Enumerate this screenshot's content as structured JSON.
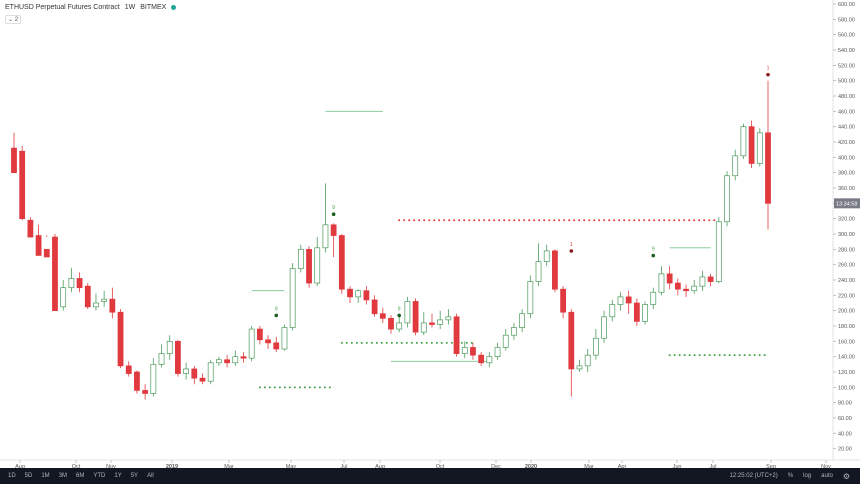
{
  "legend": {
    "symbol": "ETHUSD Perpetual Futures Contract",
    "interval": "1W",
    "exchange": "BITMEX",
    "status_color": "#26a69a"
  },
  "collapse_count": "2",
  "price_badge": "13:34:58",
  "bottom_bar": {
    "ranges": [
      "1D",
      "5D",
      "1M",
      "3M",
      "6M",
      "YTD",
      "1Y",
      "5Y",
      "All"
    ],
    "time": "12:25:02 (UTC+2)",
    "percent": "%",
    "log": "log",
    "auto": "auto",
    "settings_icon": "gear-icon"
  },
  "chart_data": {
    "type": "candlestick",
    "colors": {
      "up": "#ffffff",
      "up_border": "#4c9a5c",
      "down": "#e0393e",
      "marker_red": "#e53935",
      "marker_green": "#43a047"
    },
    "y_axis": {
      "ticks": [
        "20.00",
        "40.00",
        "60.00",
        "80.00",
        "100.00",
        "120.00",
        "140.00",
        "160.00",
        "180.00",
        "200.00",
        "220.00",
        "240.00",
        "260.00",
        "280.00",
        "300.00",
        "320.00",
        "340.00",
        "360.00",
        "380.00",
        "400.00",
        "420.00",
        "440.00",
        "460.00",
        "480.00",
        "500.00",
        "520.00",
        "540.00",
        "560.00",
        "580.00",
        "600.00"
      ],
      "range": [
        0,
        600
      ]
    },
    "x_axis": {
      "ticks": [
        "Aug",
        "Oct",
        "Nov",
        "2019",
        "Mar",
        "May",
        "Jul",
        "Aug",
        "Oct",
        "Dec",
        "2020",
        "Mar",
        "Apr",
        "Jun",
        "Jul",
        "Sep",
        "Nov"
      ]
    },
    "candles": [
      [
        412,
        380,
        432,
        408
      ],
      [
        408,
        320,
        415,
        318
      ],
      [
        318,
        296,
        322,
        298
      ],
      [
        298,
        272,
        312,
        280
      ],
      [
        280,
        270,
        298,
        296
      ],
      [
        296,
        200,
        300,
        205
      ],
      [
        205,
        230,
        240,
        200
      ],
      [
        230,
        242,
        256,
        224
      ],
      [
        242,
        230,
        250,
        224
      ],
      [
        232,
        205,
        236,
        202
      ],
      [
        205,
        210,
        222,
        200
      ],
      [
        212,
        215,
        226,
        205
      ],
      [
        215,
        198,
        230,
        190
      ],
      [
        198,
        128,
        202,
        125
      ],
      [
        128,
        118,
        134,
        114
      ],
      [
        120,
        96,
        122,
        92
      ],
      [
        96,
        92,
        104,
        84
      ],
      [
        92,
        130,
        138,
        88
      ],
      [
        130,
        144,
        156,
        126
      ],
      [
        144,
        160,
        168,
        136
      ],
      [
        160,
        118,
        162,
        114
      ],
      [
        118,
        124,
        132,
        110
      ],
      [
        124,
        112,
        128,
        104
      ],
      [
        112,
        108,
        118,
        104
      ],
      [
        108,
        132,
        136,
        104
      ],
      [
        132,
        136,
        140,
        128
      ],
      [
        136,
        132,
        142,
        126
      ],
      [
        132,
        140,
        148,
        128
      ],
      [
        140,
        138,
        146,
        132
      ],
      [
        138,
        176,
        180,
        134
      ],
      [
        176,
        162,
        180,
        156
      ],
      [
        162,
        158,
        168,
        150
      ],
      [
        158,
        150,
        166,
        146
      ],
      [
        150,
        178,
        182,
        148
      ],
      [
        178,
        255,
        262,
        174
      ],
      [
        255,
        280,
        286,
        250
      ],
      [
        280,
        236,
        284,
        230
      ],
      [
        236,
        282,
        296,
        232
      ],
      [
        282,
        312,
        366,
        276
      ],
      [
        312,
        298,
        314,
        270
      ],
      [
        298,
        228,
        300,
        222
      ],
      [
        228,
        218,
        232,
        210
      ],
      [
        218,
        226,
        228,
        210
      ],
      [
        226,
        214,
        232,
        208
      ],
      [
        214,
        196,
        220,
        192
      ],
      [
        196,
        190,
        204,
        184
      ],
      [
        190,
        176,
        194,
        170
      ],
      [
        176,
        184,
        196,
        172
      ],
      [
        184,
        212,
        218,
        178
      ],
      [
        212,
        172,
        216,
        168
      ],
      [
        172,
        184,
        198,
        168
      ],
      [
        184,
        182,
        196,
        178
      ],
      [
        182,
        188,
        200,
        176
      ],
      [
        188,
        192,
        202,
        182
      ],
      [
        192,
        144,
        196,
        140
      ],
      [
        144,
        152,
        160,
        138
      ],
      [
        152,
        142,
        158,
        136
      ],
      [
        142,
        132,
        146,
        128
      ],
      [
        132,
        140,
        146,
        126
      ],
      [
        140,
        152,
        158,
        136
      ],
      [
        152,
        168,
        176,
        148
      ],
      [
        168,
        178,
        184,
        162
      ],
      [
        178,
        196,
        202,
        172
      ],
      [
        196,
        238,
        246,
        190
      ],
      [
        238,
        264,
        288,
        232
      ],
      [
        264,
        278,
        286,
        258
      ],
      [
        278,
        228,
        280,
        224
      ],
      [
        228,
        198,
        232,
        190
      ],
      [
        198,
        124,
        202,
        88
      ],
      [
        124,
        128,
        136,
        120
      ],
      [
        128,
        142,
        150,
        120
      ],
      [
        142,
        164,
        176,
        136
      ],
      [
        164,
        192,
        200,
        158
      ],
      [
        192,
        208,
        214,
        186
      ],
      [
        208,
        218,
        224,
        200
      ],
      [
        218,
        210,
        226,
        196
      ],
      [
        210,
        186,
        216,
        180
      ],
      [
        186,
        208,
        212,
        182
      ],
      [
        208,
        224,
        230,
        202
      ],
      [
        224,
        248,
        258,
        220
      ],
      [
        248,
        236,
        258,
        228
      ],
      [
        236,
        228,
        242,
        220
      ],
      [
        228,
        226,
        234,
        218
      ],
      [
        226,
        232,
        240,
        222
      ],
      [
        232,
        244,
        252,
        226
      ],
      [
        244,
        238,
        248,
        232
      ],
      [
        238,
        316,
        322,
        236
      ],
      [
        316,
        376,
        382,
        310
      ],
      [
        376,
        402,
        410,
        370
      ],
      [
        402,
        440,
        444,
        398
      ],
      [
        440,
        392,
        448,
        386
      ],
      [
        392,
        432,
        438,
        388
      ],
      [
        432,
        340,
        500,
        306
      ]
    ],
    "markers": [
      {
        "type": "td_count",
        "index": 39,
        "price": 318,
        "color": "#43a047",
        "label": "9"
      },
      {
        "type": "td_count",
        "index": 32,
        "price": 186,
        "color": "#43a047",
        "label": "9"
      },
      {
        "type": "td_count",
        "index": 47,
        "price": 186,
        "color": "#43a047",
        "label": "9"
      },
      {
        "type": "td_count",
        "index": 78,
        "price": 264,
        "color": "#43a047",
        "label": "9"
      },
      {
        "type": "td_count",
        "index": 92,
        "price": 500,
        "color": "#e53935",
        "label": "1"
      },
      {
        "type": "td_count",
        "index": 68,
        "price": 270,
        "color": "#e53935",
        "label": "1"
      }
    ],
    "lines": {
      "green_dotted": [
        {
          "from": 30,
          "to": 39,
          "price": 100
        },
        {
          "from": 40,
          "to": 56,
          "price": 158
        },
        {
          "from": 80,
          "to": 92,
          "price": 142
        }
      ],
      "red_dotted": [
        {
          "from": 47,
          "to": 86,
          "price": 318
        }
      ],
      "green_solid": [
        {
          "from": 38,
          "to": 45,
          "price": 460
        },
        {
          "from": 29,
          "to": 33,
          "price": 226
        },
        {
          "from": 46,
          "to": 58,
          "price": 134
        },
        {
          "from": 80,
          "to": 85,
          "price": 282
        }
      ]
    }
  }
}
